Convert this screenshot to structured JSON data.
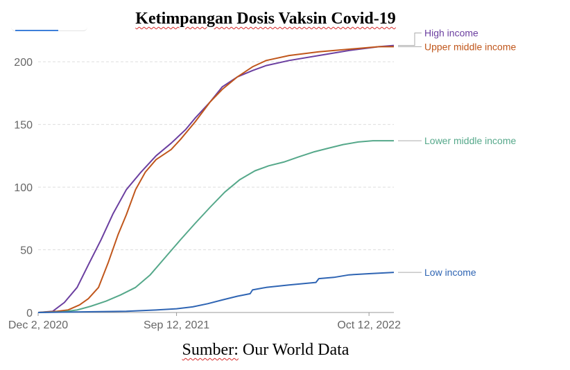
{
  "title_main": "Ketimpangan Dosis Vaksin Covid-19",
  "caption": {
    "prefix": "Sumber:",
    "rest": " Our World Data"
  },
  "colors": {
    "high_income": "#6b3fa0",
    "upper_middle_income": "#c0561b",
    "lower_middle_income": "#55a88a",
    "low_income": "#2e64b3",
    "grid": "#dddddd",
    "axis": "#999999"
  },
  "chart_data": {
    "type": "line",
    "x_axis": {
      "start": "2020-12-02",
      "end": "2022-12-02",
      "tick_labels": [
        "Dec 2, 2020",
        "Sep 12, 2021",
        "Oct 12, 2022"
      ],
      "tick_dates": [
        "2020-12-02",
        "2021-09-12",
        "2022-10-12"
      ]
    },
    "y_axis": {
      "min": 0,
      "max": 215,
      "ticks": [
        0,
        50,
        100,
        150,
        200
      ],
      "grid": true
    },
    "series": [
      {
        "name": "High income",
        "color_key": "high_income",
        "label_value": 213,
        "points": [
          [
            "2020-12-02",
            0
          ],
          [
            "2021-01-01",
            1
          ],
          [
            "2021-01-25",
            8
          ],
          [
            "2021-02-20",
            20
          ],
          [
            "2021-03-15",
            38
          ],
          [
            "2021-04-10",
            58
          ],
          [
            "2021-05-05",
            79
          ],
          [
            "2021-06-01",
            98
          ],
          [
            "2021-07-01",
            112
          ],
          [
            "2021-08-01",
            125
          ],
          [
            "2021-09-01",
            135
          ],
          [
            "2021-10-01",
            146
          ],
          [
            "2021-10-20",
            155
          ],
          [
            "2021-11-20",
            168
          ],
          [
            "2021-12-15",
            180
          ],
          [
            "2022-01-15",
            188
          ],
          [
            "2022-02-15",
            193
          ],
          [
            "2022-03-15",
            197
          ],
          [
            "2022-05-01",
            201
          ],
          [
            "2022-07-01",
            205
          ],
          [
            "2022-09-01",
            209
          ],
          [
            "2022-11-01",
            212
          ],
          [
            "2022-12-02",
            213
          ]
        ]
      },
      {
        "name": "Upper middle income",
        "color_key": "upper_middle_income",
        "label_value": 212,
        "points": [
          [
            "2020-12-02",
            0
          ],
          [
            "2021-01-10",
            1
          ],
          [
            "2021-02-01",
            2
          ],
          [
            "2021-02-25",
            6
          ],
          [
            "2021-03-15",
            11
          ],
          [
            "2021-04-05",
            20
          ],
          [
            "2021-04-25",
            40
          ],
          [
            "2021-05-15",
            62
          ],
          [
            "2021-06-01",
            78
          ],
          [
            "2021-06-20",
            98
          ],
          [
            "2021-07-10",
            112
          ],
          [
            "2021-08-01",
            122
          ],
          [
            "2021-09-01",
            130
          ],
          [
            "2021-09-20",
            138
          ],
          [
            "2021-10-20",
            152
          ],
          [
            "2021-11-20",
            168
          ],
          [
            "2021-12-15",
            178
          ],
          [
            "2022-01-15",
            188
          ],
          [
            "2022-02-15",
            196
          ],
          [
            "2022-03-15",
            201
          ],
          [
            "2022-05-01",
            205
          ],
          [
            "2022-07-01",
            208
          ],
          [
            "2022-09-01",
            210
          ],
          [
            "2022-11-01",
            212
          ],
          [
            "2022-12-02",
            212
          ]
        ]
      },
      {
        "name": "Lower middle income",
        "color_key": "lower_middle_income",
        "label_value": 137,
        "points": [
          [
            "2020-12-02",
            0
          ],
          [
            "2021-01-20",
            0.5
          ],
          [
            "2021-02-20",
            2
          ],
          [
            "2021-03-20",
            5
          ],
          [
            "2021-04-20",
            9
          ],
          [
            "2021-05-20",
            14
          ],
          [
            "2021-06-20",
            20
          ],
          [
            "2021-07-20",
            30
          ],
          [
            "2021-08-20",
            44
          ],
          [
            "2021-09-20",
            58
          ],
          [
            "2021-10-20",
            71
          ],
          [
            "2021-11-20",
            84
          ],
          [
            "2021-12-20",
            96
          ],
          [
            "2022-01-20",
            106
          ],
          [
            "2022-02-20",
            113
          ],
          [
            "2022-03-20",
            117
          ],
          [
            "2022-04-20",
            120
          ],
          [
            "2022-05-20",
            124
          ],
          [
            "2022-06-20",
            128
          ],
          [
            "2022-07-20",
            131
          ],
          [
            "2022-08-20",
            134
          ],
          [
            "2022-09-20",
            136
          ],
          [
            "2022-10-20",
            137
          ],
          [
            "2022-12-02",
            137
          ]
        ]
      },
      {
        "name": "Low income",
        "color_key": "low_income",
        "label_value": 32,
        "points": [
          [
            "2020-12-02",
            0
          ],
          [
            "2021-03-01",
            0.5
          ],
          [
            "2021-06-01",
            1
          ],
          [
            "2021-08-01",
            2
          ],
          [
            "2021-09-12",
            3
          ],
          [
            "2021-10-15",
            4.5
          ],
          [
            "2021-11-15",
            7
          ],
          [
            "2021-12-15",
            10
          ],
          [
            "2022-01-15",
            13
          ],
          [
            "2022-02-10",
            15
          ],
          [
            "2022-02-15",
            18
          ],
          [
            "2022-03-15",
            20
          ],
          [
            "2022-05-01",
            22
          ],
          [
            "2022-06-25",
            24
          ],
          [
            "2022-07-01",
            27
          ],
          [
            "2022-08-01",
            28
          ],
          [
            "2022-09-01",
            30
          ],
          [
            "2022-10-15",
            31
          ],
          [
            "2022-12-02",
            32
          ]
        ]
      }
    ]
  }
}
